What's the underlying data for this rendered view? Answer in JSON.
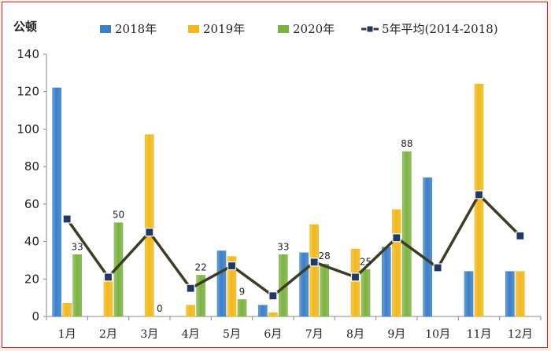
{
  "chart_data": {
    "type": "bar",
    "ylabel": "公顿",
    "ylim": [
      0,
      140
    ],
    "ytick_step": 20,
    "categories": [
      "1月",
      "2月",
      "3月",
      "4月",
      "5月",
      "6月",
      "7月",
      "8月",
      "9月",
      "10月",
      "11月",
      "12月"
    ],
    "series": [
      {
        "name": "2018年",
        "color": "#3a7fc8",
        "values": [
          122,
          null,
          null,
          null,
          35,
          6,
          34,
          null,
          37,
          74,
          24,
          24
        ]
      },
      {
        "name": "2019年",
        "color": "#f2b81c",
        "values": [
          7,
          20,
          97,
          6,
          32,
          2,
          49,
          36,
          57,
          null,
          124,
          24
        ]
      },
      {
        "name": "2020年",
        "color": "#7cb342",
        "values": [
          33,
          50,
          0,
          22,
          9,
          33,
          28,
          25,
          88,
          null,
          null,
          null
        ]
      }
    ],
    "data_labels": [
      "33",
      "50",
      "0",
      "22",
      "9",
      "33",
      "28",
      "25",
      "88"
    ],
    "line": {
      "name": "5年平均(2014-2018)",
      "color": "#3d3d26",
      "marker_color": "#1f3864",
      "values": [
        52,
        21,
        45,
        15,
        27,
        11,
        29,
        21,
        42,
        26,
        65,
        43
      ]
    },
    "legend": {
      "position": "top"
    }
  }
}
